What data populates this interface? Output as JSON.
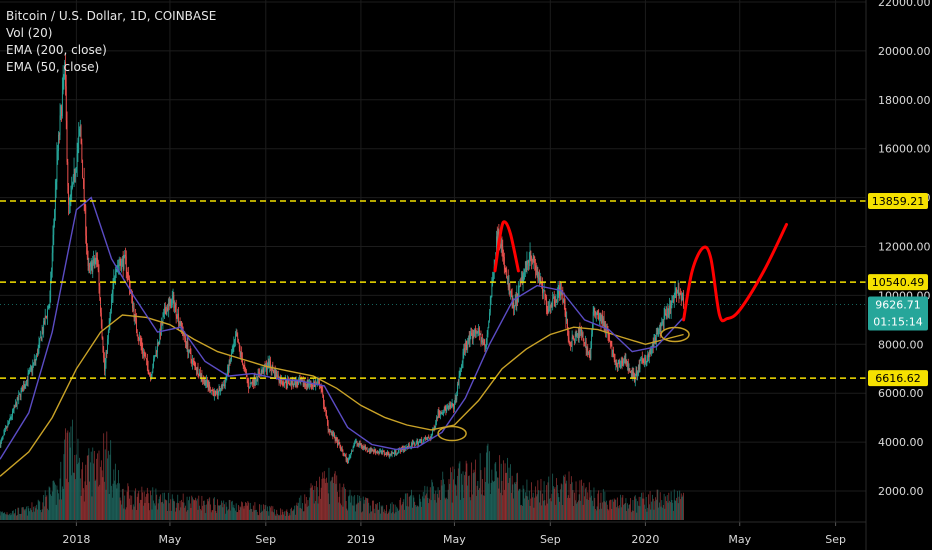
{
  "colors": {
    "background": "#000000",
    "grid": "#1c1c1c",
    "axis_text": "#d9d9d9",
    "candle_up": "#26a69a",
    "candle_down": "#ef5350",
    "ema200": "#c9a227",
    "ema50": "#5b4cc4",
    "level_line": "#f5e100",
    "projection": "#ff0000",
    "price_badge": "#26a69a",
    "level_badge": "#f5e100"
  },
  "legend": {
    "symbol": "Bitcoin / U.S. Dollar, 1D, COINBASE",
    "vol": "Vol (20)",
    "ema200": "EMA (200, close)",
    "ema50": "EMA (50, close)"
  },
  "badges": {
    "current_price": "9626.71",
    "countdown": "01:15:14"
  },
  "chart_data": {
    "type": "candlestick",
    "symbol": "BTCUSD",
    "interval": "1D",
    "exchange": "COINBASE",
    "ylim": [
      0,
      22000
    ],
    "y_ticks": [
      2000,
      4000,
      6000,
      8000,
      10000,
      12000,
      14000,
      16000,
      18000,
      20000,
      22000
    ],
    "y_tick_labels": [
      "2000.00",
      "4000.00",
      "6000.00",
      "8000.00",
      "10000.00",
      "12000.00",
      "14000.00",
      "16000.00",
      "18000.00",
      "20000.00",
      "22000.00"
    ],
    "x_labels": [
      {
        "label": "2018",
        "date": "2018-01-01"
      },
      {
        "label": "May",
        "date": "2018-05-01"
      },
      {
        "label": "Sep",
        "date": "2018-09-01"
      },
      {
        "label": "2019",
        "date": "2019-01-01"
      },
      {
        "label": "May",
        "date": "2019-05-01"
      },
      {
        "label": "Sep",
        "date": "2019-09-01"
      },
      {
        "label": "2020",
        "date": "2020-01-01"
      },
      {
        "label": "May",
        "date": "2020-05-01"
      },
      {
        "label": "Sep",
        "date": "2020-09-01"
      }
    ],
    "xlim": [
      "2017-09-25",
      "2020-10-10"
    ],
    "price_path": [
      [
        "2017-09-25",
        3900
      ],
      [
        "2017-10-20",
        5900
      ],
      [
        "2017-11-10",
        7400
      ],
      [
        "2017-11-28",
        9800
      ],
      [
        "2017-12-07",
        15500
      ],
      [
        "2017-12-17",
        19300
      ],
      [
        "2017-12-22",
        13500
      ],
      [
        "2017-12-28",
        14600
      ],
      [
        "2018-01-06",
        16800
      ],
      [
        "2018-01-16",
        11000
      ],
      [
        "2018-01-28",
        11500
      ],
      [
        "2018-02-06",
        6900
      ],
      [
        "2018-02-20",
        11200
      ],
      [
        "2018-03-05",
        11400
      ],
      [
        "2018-03-20",
        8500
      ],
      [
        "2018-04-06",
        6700
      ],
      [
        "2018-04-25",
        9400
      ],
      [
        "2018-05-05",
        9800
      ],
      [
        "2018-05-28",
        7400
      ],
      [
        "2018-06-12",
        6600
      ],
      [
        "2018-06-29",
        5900
      ],
      [
        "2018-07-10",
        6400
      ],
      [
        "2018-07-25",
        8300
      ],
      [
        "2018-08-10",
        6300
      ],
      [
        "2018-09-05",
        7200
      ],
      [
        "2018-09-20",
        6500
      ],
      [
        "2018-10-15",
        6400
      ],
      [
        "2018-11-10",
        6350
      ],
      [
        "2018-11-20",
        4600
      ],
      [
        "2018-12-05",
        3800
      ],
      [
        "2018-12-15",
        3200
      ],
      [
        "2018-12-24",
        4000
      ],
      [
        "2019-01-10",
        3700
      ],
      [
        "2019-02-08",
        3500
      ],
      [
        "2019-03-01",
        3800
      ],
      [
        "2019-04-01",
        4200
      ],
      [
        "2019-04-10",
        5200
      ],
      [
        "2019-05-01",
        5500
      ],
      [
        "2019-05-14",
        7900
      ],
      [
        "2019-05-30",
        8600
      ],
      [
        "2019-06-10",
        7800
      ],
      [
        "2019-06-26",
        12800
      ],
      [
        "2019-07-05",
        11000
      ],
      [
        "2019-07-16",
        9400
      ],
      [
        "2019-08-06",
        11800
      ],
      [
        "2019-08-29",
        9500
      ],
      [
        "2019-09-15",
        10300
      ],
      [
        "2019-09-26",
        8000
      ],
      [
        "2019-10-10",
        8500
      ],
      [
        "2019-10-22",
        7500
      ],
      [
        "2019-10-27",
        9500
      ],
      [
        "2019-11-10",
        8800
      ],
      [
        "2019-11-25",
        7000
      ],
      [
        "2019-12-05",
        7400
      ],
      [
        "2019-12-18",
        6600
      ],
      [
        "2019-12-27",
        7300
      ],
      [
        "2020-01-05",
        7500
      ],
      [
        "2020-01-20",
        8700
      ],
      [
        "2020-02-01",
        9400
      ],
      [
        "2020-02-12",
        10300
      ],
      [
        "2020-02-19",
        9626.71
      ]
    ],
    "ema200_path": [
      [
        "2017-09-25",
        2600
      ],
      [
        "2017-11-01",
        3600
      ],
      [
        "2017-12-01",
        5000
      ],
      [
        "2018-01-01",
        7000
      ],
      [
        "2018-02-01",
        8500
      ],
      [
        "2018-03-01",
        9200
      ],
      [
        "2018-04-01",
        9100
      ],
      [
        "2018-05-01",
        8800
      ],
      [
        "2018-06-01",
        8200
      ],
      [
        "2018-07-01",
        7700
      ],
      [
        "2018-08-01",
        7400
      ],
      [
        "2018-09-01",
        7100
      ],
      [
        "2018-10-01",
        6900
      ],
      [
        "2018-11-01",
        6700
      ],
      [
        "2018-12-01",
        6200
      ],
      [
        "2019-01-01",
        5500
      ],
      [
        "2019-02-01",
        5000
      ],
      [
        "2019-03-01",
        4700
      ],
      [
        "2019-04-01",
        4500
      ],
      [
        "2019-05-01",
        4700
      ],
      [
        "2019-06-01",
        5700
      ],
      [
        "2019-07-01",
        7000
      ],
      [
        "2019-08-01",
        7800
      ],
      [
        "2019-09-01",
        8400
      ],
      [
        "2019-10-01",
        8700
      ],
      [
        "2019-11-01",
        8600
      ],
      [
        "2019-12-01",
        8300
      ],
      [
        "2020-01-01",
        8000
      ],
      [
        "2020-02-19",
        8400
      ]
    ],
    "ema50_path": [
      [
        "2017-09-25",
        3300
      ],
      [
        "2017-11-01",
        5200
      ],
      [
        "2017-12-01",
        8500
      ],
      [
        "2018-01-01",
        13500
      ],
      [
        "2018-01-20",
        14000
      ],
      [
        "2018-02-15",
        11500
      ],
      [
        "2018-03-15",
        10000
      ],
      [
        "2018-04-15",
        8500
      ],
      [
        "2018-05-15",
        8700
      ],
      [
        "2018-06-15",
        7300
      ],
      [
        "2018-07-15",
        6700
      ],
      [
        "2018-08-15",
        6800
      ],
      [
        "2018-09-15",
        6600
      ],
      [
        "2018-10-15",
        6500
      ],
      [
        "2018-11-15",
        6300
      ],
      [
        "2018-12-15",
        4600
      ],
      [
        "2019-01-15",
        3900
      ],
      [
        "2019-02-15",
        3700
      ],
      [
        "2019-03-15",
        3800
      ],
      [
        "2019-04-15",
        4400
      ],
      [
        "2019-05-15",
        5800
      ],
      [
        "2019-06-15",
        8000
      ],
      [
        "2019-07-15",
        9800
      ],
      [
        "2019-08-15",
        10400
      ],
      [
        "2019-09-15",
        10200
      ],
      [
        "2019-10-15",
        9000
      ],
      [
        "2019-11-15",
        8600
      ],
      [
        "2019-12-15",
        7700
      ],
      [
        "2020-01-15",
        7900
      ],
      [
        "2020-02-19",
        9100
      ]
    ],
    "volume_range": [
      0,
      30000
    ],
    "volume_path": [
      [
        "2017-09-25",
        2500
      ],
      [
        "2017-11-01",
        3500
      ],
      [
        "2017-12-10",
        11000
      ],
      [
        "2017-12-20",
        30000
      ],
      [
        "2018-01-10",
        15000
      ],
      [
        "2018-02-06",
        25000
      ],
      [
        "2018-03-01",
        9000
      ],
      [
        "2018-04-10",
        8000
      ],
      [
        "2018-06-01",
        6000
      ],
      [
        "2018-08-01",
        5000
      ],
      [
        "2018-10-01",
        2500
      ],
      [
        "2018-11-20",
        14000
      ],
      [
        "2018-12-20",
        7000
      ],
      [
        "2019-02-01",
        4000
      ],
      [
        "2019-04-02",
        10000
      ],
      [
        "2019-05-15",
        15000
      ],
      [
        "2019-06-26",
        20000
      ],
      [
        "2019-08-01",
        10000
      ],
      [
        "2019-09-26",
        12000
      ],
      [
        "2019-11-01",
        8000
      ],
      [
        "2019-12-20",
        6000
      ],
      [
        "2020-01-15",
        8000
      ],
      [
        "2020-02-19",
        7000
      ]
    ],
    "horizontal_levels": [
      {
        "value": 13859.21,
        "label": "13859.21"
      },
      {
        "value": 10540.49,
        "label": "10540.49"
      },
      {
        "value": 6616.62,
        "label": "6616.62"
      }
    ],
    "projection_path": [
      [
        "2020-02-19",
        9000
      ],
      [
        "2020-03-01",
        11000
      ],
      [
        "2020-03-15",
        11950
      ],
      [
        "2020-03-25",
        11500
      ],
      [
        "2020-04-05",
        9200
      ],
      [
        "2020-04-15",
        9050
      ],
      [
        "2020-05-01",
        9400
      ],
      [
        "2020-06-01",
        11000
      ],
      [
        "2020-06-30",
        12900
      ]
    ],
    "annotation_arcs": [
      [
        [
          "2019-06-22",
          11000
        ],
        [
          "2019-06-30",
          12700
        ],
        [
          "2019-07-05",
          13000
        ],
        [
          "2019-07-12",
          12500
        ],
        [
          "2019-07-22",
          11000
        ]
      ]
    ],
    "ellipses": [
      {
        "date": "2019-04-28",
        "value": 4350
      },
      {
        "date": "2020-02-08",
        "value": 8400
      }
    ]
  }
}
